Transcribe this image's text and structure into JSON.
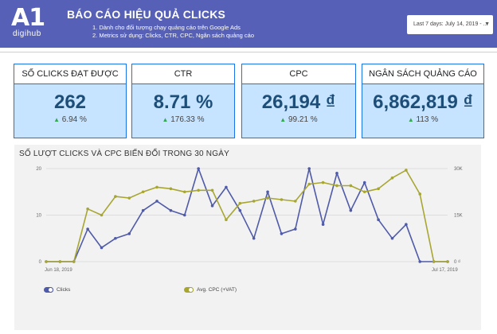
{
  "header": {
    "logo_main": "A1",
    "logo_sub": "digihub",
    "title": "BÁO CÁO HIỆU QUẢ CLICKS",
    "subtitle_lines": [
      "1. Dành cho đối tượng chạy quảng cáo trên Google Ads",
      "2. Metrics sử dụng: Clicks, CTR, CPC, Ngân sách quảng cáo"
    ],
    "date_range": "Last 7 days: July 14, 2019 - ...",
    "dropdown_icon": "caret-down-icon"
  },
  "scorecards": [
    {
      "title": "SỐ CLICKS ĐẠT ĐƯỢC",
      "value": "262",
      "change": "6.94 %"
    },
    {
      "title": "CTR",
      "value": "8.71 %",
      "change": "176.33 %"
    },
    {
      "title": "CPC",
      "value": "26,194 ₫",
      "change": "99.21 %"
    },
    {
      "title": "NGÂN SÁCH QUẢNG CÁO",
      "value": "6,862,819 ₫",
      "change": "113 %"
    }
  ],
  "colors": {
    "header_bg": "#5560b6",
    "card_border": "#1a73e8",
    "card_fill": "#c6e3ff",
    "value_text": "#1d4e78",
    "positive": "#34a853",
    "clicks_series": "#4f5aa8",
    "cpc_series": "#a8a632"
  },
  "chart_data": {
    "type": "line",
    "title": "SỐ LƯỢT CLICKS VÀ CPC BIẾN ĐỔI TRONG 30 NGÀY",
    "x_tick_labels": [
      "Jun 18, 2019",
      "Jul 17, 2019"
    ],
    "left_axis": {
      "ticks": [
        "0",
        "10",
        "20"
      ],
      "range": [
        0,
        20
      ]
    },
    "right_axis": {
      "ticks": [
        "0 ₫",
        "15K",
        "30K"
      ],
      "range": [
        0,
        30000
      ]
    },
    "grid": true,
    "legend_position": "bottom-left",
    "series": [
      {
        "name": "Clicks",
        "axis": "left",
        "values": [
          0,
          0,
          0,
          7,
          3,
          5,
          6,
          11,
          13,
          11,
          10,
          20,
          12,
          16,
          11,
          5,
          15,
          6,
          7,
          20,
          8,
          19,
          11,
          17,
          9,
          5,
          8,
          0,
          0,
          0
        ]
      },
      {
        "name": "Avg. CPC (+VAT)",
        "axis": "right",
        "values": [
          0,
          0,
          0,
          17000,
          15000,
          21000,
          20500,
          22500,
          24000,
          23500,
          22500,
          23000,
          23000,
          13500,
          18800,
          19500,
          20500,
          20000,
          19500,
          25000,
          25500,
          24500,
          24500,
          22500,
          23500,
          27000,
          29500,
          21800,
          0,
          0
        ]
      }
    ]
  }
}
